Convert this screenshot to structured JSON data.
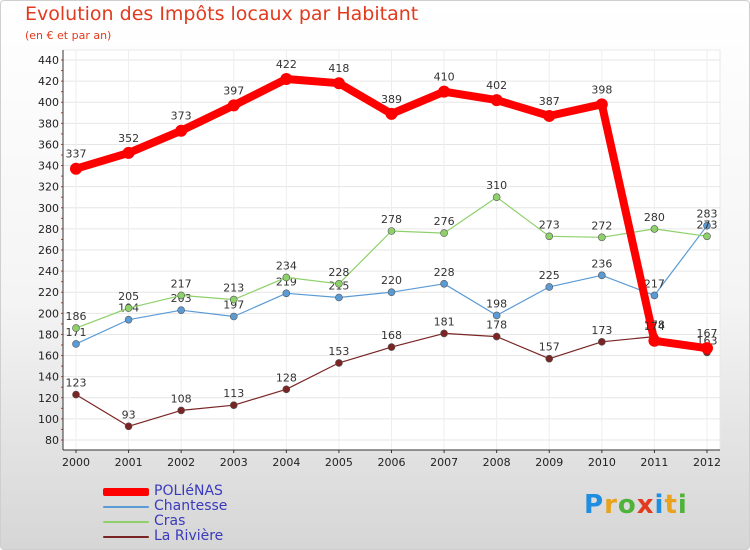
{
  "chart_data": {
    "type": "line",
    "title": "Evolution des Impôts locaux par Habitant",
    "subtitle": "(en € et par an)",
    "xlabel": "",
    "ylabel": "",
    "ylim": [
      80,
      440
    ],
    "ytick_step": 20,
    "x": [
      "2000",
      "2001",
      "2002",
      "2003",
      "2004",
      "2005",
      "2006",
      "2007",
      "2008",
      "2009",
      "2010",
      "2011",
      "2012"
    ],
    "series": [
      {
        "name": "POLIéNAS",
        "color": "#ff0000",
        "bold": true,
        "values": [
          337,
          352,
          373,
          397,
          422,
          418,
          389,
          410,
          402,
          387,
          398,
          174,
          167
        ]
      },
      {
        "name": "Chantesse",
        "color": "#5b9bd5",
        "bold": false,
        "values": [
          171,
          194,
          203,
          197,
          219,
          215,
          220,
          228,
          198,
          225,
          236,
          217,
          283
        ]
      },
      {
        "name": "Cras",
        "color": "#8ed16a",
        "bold": false,
        "values": [
          186,
          205,
          217,
          213,
          234,
          228,
          278,
          276,
          310,
          273,
          272,
          280,
          273
        ]
      },
      {
        "name": "La Rivière",
        "color": "#7a2424",
        "bold": false,
        "values": [
          123,
          93,
          108,
          113,
          128,
          153,
          168,
          181,
          178,
          157,
          173,
          178,
          163
        ]
      }
    ]
  },
  "branding": {
    "logo_letters": [
      "P",
      "r",
      "o",
      "x",
      "i",
      "t",
      "i"
    ],
    "logo_colors": [
      "#1f8de0",
      "#e8a21c",
      "#4fb33a",
      "#e23a1e",
      "#1f8de0",
      "#e8a21c",
      "#4fb33a"
    ]
  }
}
